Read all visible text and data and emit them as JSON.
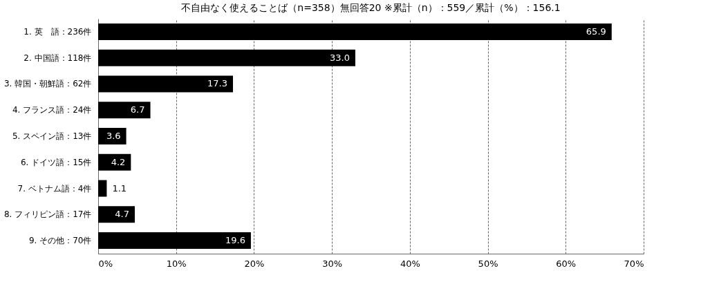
{
  "chart_data": {
    "type": "bar",
    "orientation": "horizontal",
    "title": "不自由なく使えることば（n=358）無回答20 ※累計（n）：559／累計（%）：156.1",
    "categories": [
      "1. 英　語：236件",
      "2. 中国語：118件",
      "3. 韓国・朝鮮語：62件",
      "4. フランス語：24件",
      "5. スペイン語：13件",
      "6. ドイツ語：15件",
      "7. ベトナム語：4件",
      "8. フィリピン語：17件",
      "9. その他：70件"
    ],
    "values": [
      65.9,
      33.0,
      17.3,
      6.7,
      3.6,
      4.2,
      1.1,
      4.7,
      19.6
    ],
    "value_labels": [
      "65.9",
      "33.0",
      "17.3",
      "6.7",
      "3.6",
      "4.2",
      "1.1",
      "4.7",
      "19.6"
    ],
    "color": "#000000",
    "xlim": [
      0,
      70
    ],
    "xticks": [
      {
        "value": 0,
        "label": "0%"
      },
      {
        "value": 10,
        "label": "10%"
      },
      {
        "value": 20,
        "label": "20%"
      },
      {
        "value": 30,
        "label": "30%"
      },
      {
        "value": 40,
        "label": "40%"
      },
      {
        "value": 50,
        "label": "50%"
      },
      {
        "value": 60,
        "label": "60%"
      },
      {
        "value": 70,
        "label": "70%"
      }
    ],
    "grid": "x"
  }
}
